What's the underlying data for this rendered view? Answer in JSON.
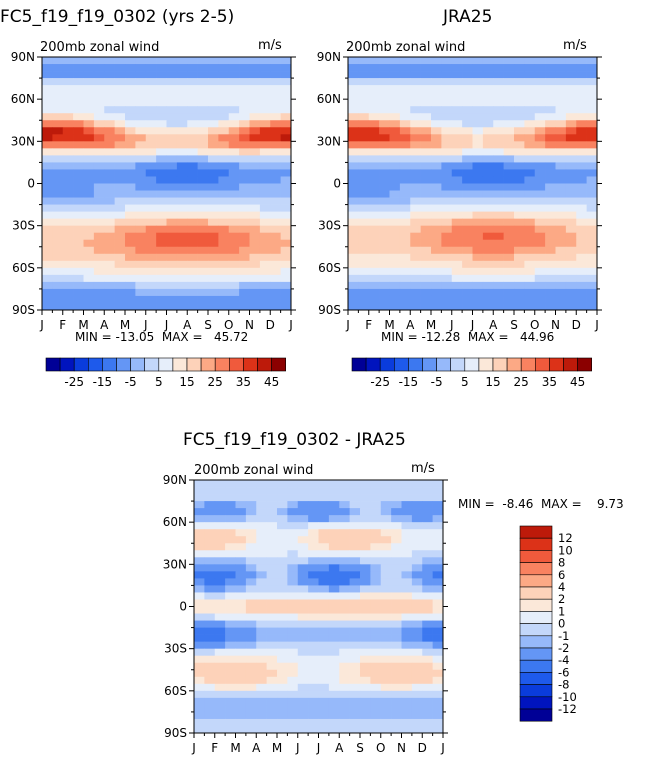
{
  "chart_data": [
    {
      "type": "heatmap",
      "title": "FC5_f19_f19_0302 (yrs 2-5)",
      "subtitle": "200mb zonal wind",
      "units": "m/s",
      "xticks": [
        "J",
        "F",
        "M",
        "A",
        "M",
        "J",
        "J",
        "A",
        "S",
        "O",
        "N",
        "D",
        "J"
      ],
      "yticks": [
        "90N",
        "60N",
        "30N",
        "0",
        "30S",
        "60S",
        "90S"
      ],
      "ylim": [
        -90,
        90
      ],
      "stats_label": "MIN = -13.05  MAX =   45.72",
      "min": -13.05,
      "max": 45.72,
      "colorbar": {
        "orientation": "horizontal",
        "labels": [
          "-25",
          "-15",
          "-5",
          "5",
          "15",
          "25",
          "35",
          "45"
        ],
        "levels": [
          -30,
          -25,
          -20,
          -15,
          -10,
          -5,
          0,
          5,
          10,
          15,
          20,
          25,
          30,
          35,
          40,
          45,
          50
        ],
        "colors": [
          "#000096",
          "#0014be",
          "#0a3cdc",
          "#1e5aeb",
          "#3c78f0",
          "#6496f5",
          "#96b9fa",
          "#c3d7fa",
          "#e6eefa",
          "#fbe8d9",
          "#fdd2b9",
          "#fca985",
          "#f98260",
          "#f05a3c",
          "#dc3218",
          "#bd1a0a",
          "#8b0000"
        ]
      },
      "features": [
        {
          "kind": "jet",
          "lat": 32,
          "peak": 44,
          "width": 9,
          "month_peak": 0.3
        },
        {
          "kind": "jet",
          "lat": -40,
          "peak": 34,
          "width": 14,
          "month_peak": 7
        }
      ]
    },
    {
      "type": "heatmap",
      "title": "JRA25",
      "subtitle": "200mb zonal wind",
      "units": "m/s",
      "xticks": [
        "J",
        "F",
        "M",
        "A",
        "M",
        "J",
        "J",
        "A",
        "S",
        "O",
        "N",
        "D",
        "J"
      ],
      "yticks": [
        "90N",
        "60N",
        "30N",
        "0",
        "30S",
        "60S",
        "90S"
      ],
      "ylim": [
        -90,
        90
      ],
      "stats_label": "MIN = -12.28  MAX =   44.96",
      "min": -12.28,
      "max": 44.96,
      "colorbar": {
        "orientation": "horizontal",
        "labels": [
          "-25",
          "-15",
          "-5",
          "5",
          "15",
          "25",
          "35",
          "45"
        ],
        "levels": [
          -30,
          -25,
          -20,
          -15,
          -10,
          -5,
          0,
          5,
          10,
          15,
          20,
          25,
          30,
          35,
          40,
          45,
          50
        ],
        "colors": [
          "#000096",
          "#0014be",
          "#0a3cdc",
          "#1e5aeb",
          "#3c78f0",
          "#6496f5",
          "#96b9fa",
          "#c3d7fa",
          "#e6eefa",
          "#fbe8d9",
          "#fdd2b9",
          "#fca985",
          "#f98260",
          "#f05a3c",
          "#dc3218",
          "#bd1a0a",
          "#8b0000"
        ]
      },
      "features": [
        {
          "kind": "jet",
          "lat": 32,
          "peak": 42,
          "width": 9,
          "month_peak": 0.3
        },
        {
          "kind": "jet",
          "lat": -38,
          "peak": 32,
          "width": 14,
          "month_peak": 7
        }
      ]
    },
    {
      "type": "heatmap",
      "title": "FC5_f19_f19_0302 - JRA25",
      "subtitle": "200mb zonal wind",
      "units": "m/s",
      "xticks": [
        "J",
        "F",
        "M",
        "A",
        "M",
        "J",
        "J",
        "A",
        "S",
        "O",
        "N",
        "D",
        "J"
      ],
      "yticks": [
        "90N",
        "60N",
        "30N",
        "0",
        "30S",
        "60S",
        "90S"
      ],
      "ylim": [
        -90,
        90
      ],
      "stats_label": "MIN =  -8.46  MAX =    9.73",
      "min": -8.46,
      "max": 9.73,
      "colorbar": {
        "orientation": "vertical",
        "labels": [
          "12",
          "10",
          "8",
          "6",
          "4",
          "2",
          "1",
          "0",
          "-1",
          "-2",
          "-4",
          "-6",
          "-8",
          "-10",
          "-12"
        ],
        "levels": [
          -14,
          -12,
          -10,
          -8,
          -6,
          -4,
          -2,
          -1,
          0,
          1,
          2,
          4,
          6,
          8,
          10,
          12,
          14
        ],
        "colors": [
          "#000096",
          "#0014be",
          "#0a3cdc",
          "#1e5aeb",
          "#3c78f0",
          "#6496f5",
          "#96b9fa",
          "#c3d7fa",
          "#e6eefa",
          "#fbe8d9",
          "#fdd2b9",
          "#fca985",
          "#f98260",
          "#f05a3c",
          "#dc3218",
          "#bd1a0a"
        ]
      }
    }
  ]
}
